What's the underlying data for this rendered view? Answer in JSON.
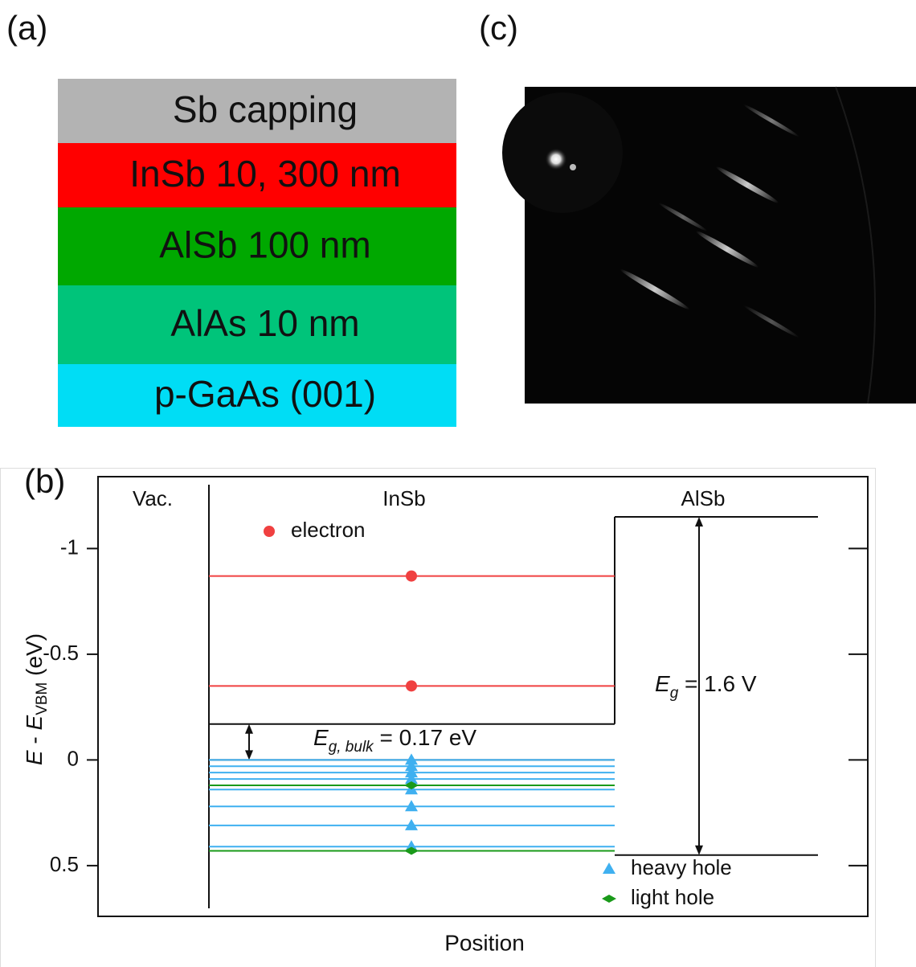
{
  "panel_labels": [
    "(a)",
    "(b)",
    "(c)"
  ],
  "layers": [
    {
      "name": "Sb capping",
      "color": "#b3b3b3"
    },
    {
      "name": "InSb 10, 300 nm",
      "color": "#ff0000"
    },
    {
      "name": "AlSb 100 nm",
      "color": "#00a800"
    },
    {
      "name": "AlAs 10 nm",
      "color": "#00c47a"
    },
    {
      "name": "p-GaAs (001)",
      "color": "#00ddf5"
    }
  ],
  "chart_data": {
    "type": "band-diagram",
    "x_label": "Position",
    "y_label": {
      "symbol": "E",
      "minus": " - ",
      "symbol2": "E",
      "subscript": "VBM",
      "unit": " (eV)"
    },
    "ylim": [
      -1.34,
      0.74
    ],
    "y_reversed": true,
    "yticks": [
      -1,
      -0.5,
      0,
      0.5
    ],
    "regions": [
      {
        "name": "Vac."
      },
      {
        "name": "InSb",
        "conduction": -0.17,
        "valence": 0
      },
      {
        "name": "AlSb",
        "conduction": -1.15,
        "valence": 0.45
      }
    ],
    "annotations": [
      {
        "symbol": "E",
        "subscript": "g, bulk",
        "text": " = 0.17 eV"
      },
      {
        "symbol": "E",
        "subscript": "g",
        "text": " = 1.6 V"
      }
    ],
    "series": [
      {
        "name": "electron",
        "color": "#f04040",
        "marker": "circle",
        "values": [
          -0.87,
          -0.35
        ]
      },
      {
        "name": "heavy hole",
        "color": "#3fb0f0",
        "marker": "triangle",
        "values": [
          0,
          0.03,
          0.06,
          0.09,
          0.14,
          0.22,
          0.31,
          0.41
        ]
      },
      {
        "name": "light hole",
        "color": "#1a9a1a",
        "marker": "diamond",
        "values": [
          0.12,
          0.43
        ]
      }
    ]
  }
}
